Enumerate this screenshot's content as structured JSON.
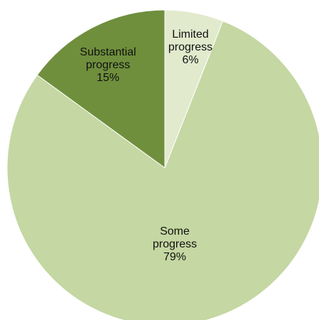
{
  "chart_data": {
    "type": "pie",
    "title": "",
    "start_angle_deg": 0,
    "direction": "clockwise",
    "slices": [
      {
        "label_lines": [
          "Limited",
          "progress"
        ],
        "percent_label": "6%",
        "value": 6,
        "color": "#e2eacd"
      },
      {
        "label_lines": [
          "Some",
          "progress"
        ],
        "percent_label": "79%",
        "value": 79,
        "color": "#c5d7a2"
      },
      {
        "label_lines": [
          "Substantial",
          "progress"
        ],
        "percent_label": "15%",
        "value": 15,
        "color": "#6f8f3d"
      }
    ],
    "border_color": "#ffffff"
  }
}
